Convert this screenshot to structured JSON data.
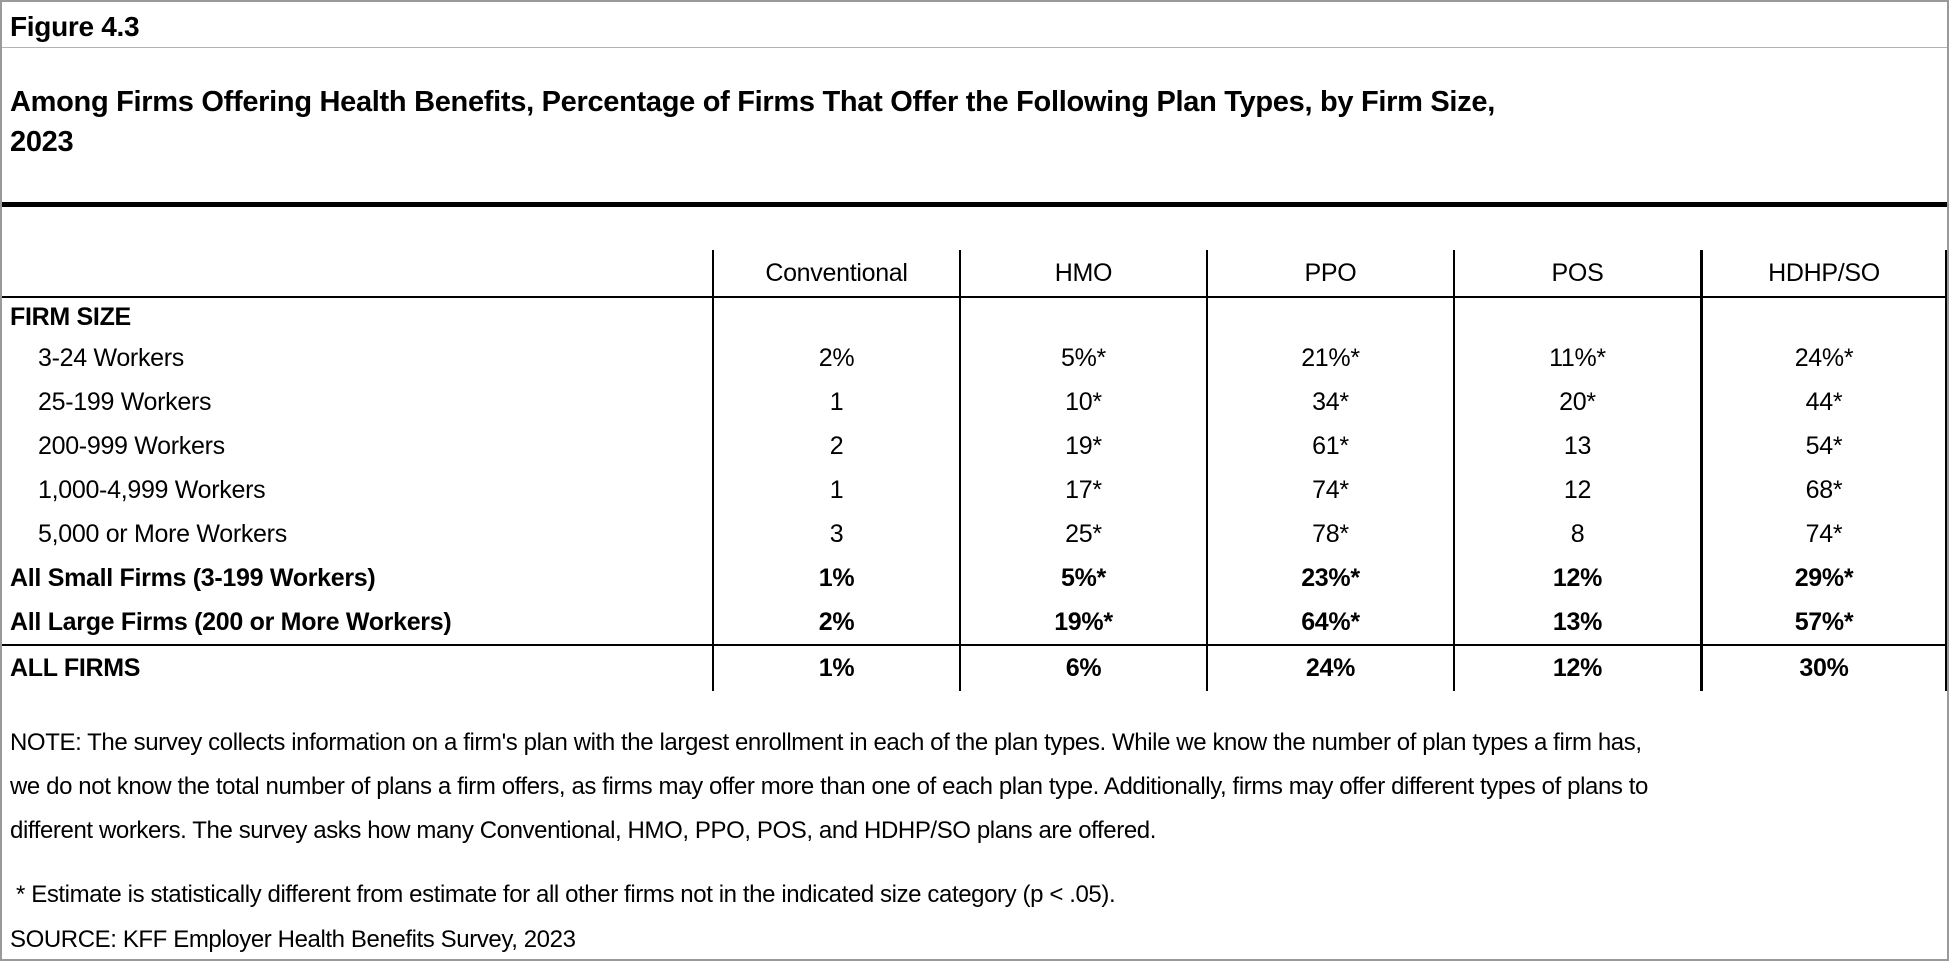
{
  "figure": {
    "number": "Figure 4.3",
    "title": "Among Firms Offering Health Benefits, Percentage of Firms That Offer the Following Plan Types, by Firm Size,\n2023"
  },
  "chart_data": {
    "type": "table",
    "title": "Among Firms Offering Health Benefits, Percentage of Firms That Offer the Following Plan Types, by Firm Size, 2023",
    "columns": [
      "Conventional",
      "HMO",
      "PPO",
      "POS",
      "HDHP/SO"
    ],
    "row_group_label": "FIRM SIZE",
    "rows": [
      {
        "label": "3-24 Workers",
        "values": [
          "2%",
          "5%*",
          "21%*",
          "11%*",
          "24%*"
        ]
      },
      {
        "label": "25-199 Workers",
        "values": [
          "1",
          "10*",
          "34*",
          "20*",
          "44*"
        ]
      },
      {
        "label": "200-999 Workers",
        "values": [
          "2",
          "19*",
          "61*",
          "13",
          "54*"
        ]
      },
      {
        "label": "1,000-4,999 Workers",
        "values": [
          "1",
          "17*",
          "74*",
          "12",
          "68*"
        ]
      },
      {
        "label": "5,000 or More Workers",
        "values": [
          "3",
          "25*",
          "78*",
          "8",
          "74*"
        ]
      },
      {
        "label": "All Small Firms (3-199 Workers)",
        "values": [
          "1%",
          "5%*",
          "23%*",
          "12%",
          "29%*"
        ]
      },
      {
        "label": "All Large Firms (200 or More Workers)",
        "values": [
          "2%",
          "19%*",
          "64%*",
          "13%",
          "57%*"
        ]
      },
      {
        "label": "ALL FIRMS",
        "values": [
          "1%",
          "6%",
          "24%",
          "12%",
          "30%"
        ]
      }
    ]
  },
  "notes": {
    "note": "NOTE: The survey collects information on a firm's plan with the largest enrollment in each of the plan types. While we know the number of plan types a firm has,\nwe do not know the total number of plans a firm offers, as firms may offer more than one of each plan type. Additionally, firms may offer different types of plans to\ndifferent workers. The survey asks how many Conventional, HMO, PPO, POS, and HDHP/SO plans are offered.",
    "footnote": "* Estimate is statistically different from estimate for all other firms not in the indicated size category (p < .05).",
    "source": "SOURCE: KFF Employer Health Benefits Survey, 2023"
  },
  "colors": {
    "text": "#000000",
    "background": "#ffffff",
    "page_border": "#9a9a9a",
    "table_lines": "#000000",
    "fig_num_rule": "#b3b3b3"
  }
}
